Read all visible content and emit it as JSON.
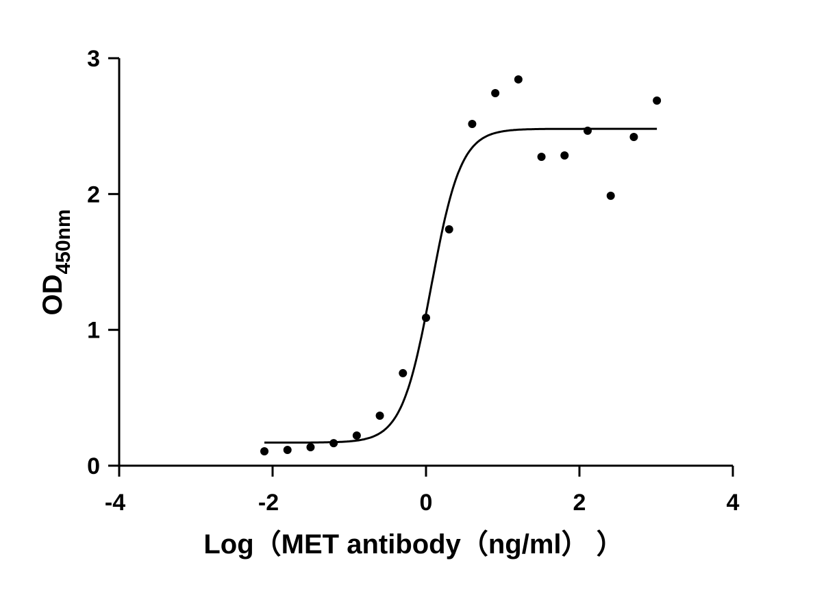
{
  "chart_data": {
    "type": "scatter",
    "title": "",
    "xlabel": "Log（MET antibody（ng/ml）  ）",
    "ylabel": {
      "main": "OD",
      "subscript": "450nm"
    },
    "xlim": [
      -4,
      4
    ],
    "ylim": [
      0,
      3
    ],
    "x_ticks": [
      "-4",
      "-2",
      "0",
      "2",
      "4"
    ],
    "y_ticks": [
      "0",
      "1",
      "2",
      "3"
    ],
    "grid": false,
    "points": {
      "x": [
        -2.107,
        -1.806,
        -1.505,
        -1.204,
        -0.903,
        -0.602,
        -0.301,
        0.0,
        0.301,
        0.602,
        0.903,
        1.204,
        1.505,
        1.806,
        2.107,
        2.408,
        2.709,
        3.01
      ],
      "y": [
        0.106,
        0.116,
        0.136,
        0.166,
        0.222,
        0.368,
        0.681,
        1.089,
        1.74,
        2.516,
        2.743,
        2.844,
        2.274,
        2.284,
        2.466,
        1.987,
        2.42,
        2.688
      ]
    },
    "fit_curve": {
      "model": "four-parameter logistic",
      "bottom": 0.17,
      "top": 2.48,
      "log_ec50": 0.07,
      "hill_slope": 2.25,
      "x_range": [
        -2.107,
        3.01
      ]
    },
    "colors": {
      "points": "#000000",
      "curve": "#000000",
      "axes": "#000000"
    }
  }
}
